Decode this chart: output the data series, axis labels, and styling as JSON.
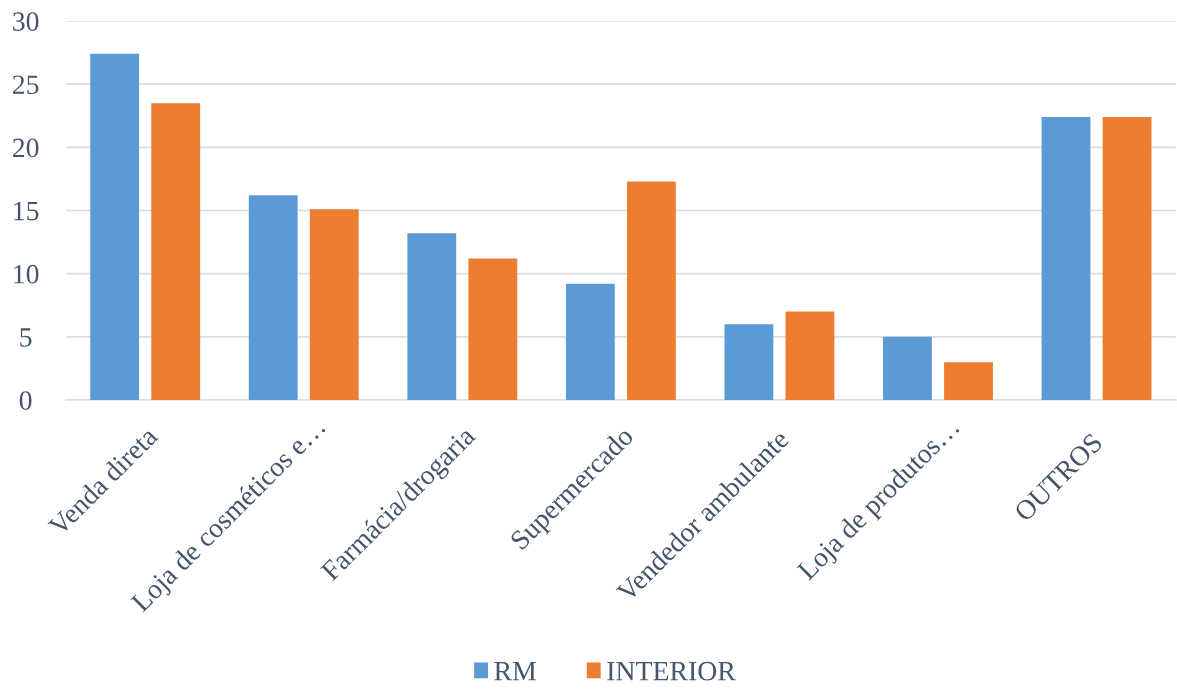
{
  "chart_data": {
    "type": "bar",
    "categories": [
      "Venda direta",
      "Loja de cosméticos e…",
      "Farmácia/drogaria",
      "Supermercado",
      "Vendedor ambulante",
      "Loja de produtos…",
      "OUTROS"
    ],
    "series": [
      {
        "name": "RM",
        "color": "#5b9bd5",
        "values": [
          27.4,
          16.2,
          13.2,
          9.2,
          6.0,
          5.0,
          22.4
        ]
      },
      {
        "name": "INTERIOR",
        "color": "#ed7d31",
        "values": [
          23.5,
          15.1,
          11.2,
          17.3,
          7.0,
          3.0,
          22.4
        ]
      }
    ],
    "ylim": [
      0,
      30
    ],
    "yticks": [
      0,
      5,
      10,
      15,
      20,
      25,
      30
    ],
    "grid": "y",
    "legend": "bottom"
  }
}
